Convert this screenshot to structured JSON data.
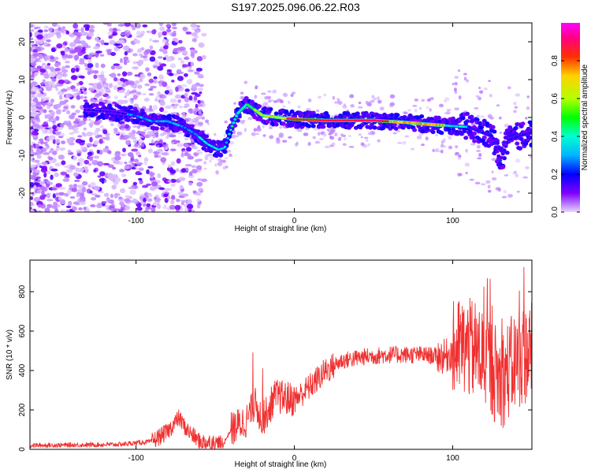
{
  "figure_title": "S197.2025.096.06.22.R03",
  "chart_data": [
    {
      "type": "heatmap",
      "xlabel": "Height of straight line (km)",
      "ylabel": "Frequency (Hz)",
      "xlim": [
        -167,
        150
      ],
      "ylim": [
        -25,
        25
      ],
      "xticks": [
        -100,
        0,
        100
      ],
      "yticks": [
        -20,
        -10,
        0,
        10,
        20
      ],
      "colorbar": {
        "label": "Normalized spectral amplitude",
        "ticks": [
          0.0,
          0.2,
          0.4,
          0.6,
          0.8
        ],
        "range": [
          0,
          1
        ],
        "colormap": [
          "#e6d6ff",
          "#8000ff",
          "#0000ff",
          "#00b4ff",
          "#00ffd0",
          "#00ff00",
          "#b4ff00",
          "#ffd200",
          "#ff3000",
          "#ff0080",
          "#ff00ff"
        ]
      },
      "ridge": [
        {
          "x": -130,
          "y": 2.0
        },
        {
          "x": -115,
          "y": 1.5
        },
        {
          "x": -100,
          "y": 0.5
        },
        {
          "x": -90,
          "y": -1.0
        },
        {
          "x": -80,
          "y": -1.0
        },
        {
          "x": -70,
          "y": -2.5
        },
        {
          "x": -62,
          "y": -4.5
        },
        {
          "x": -55,
          "y": -7.0
        },
        {
          "x": -48,
          "y": -8.5
        },
        {
          "x": -44,
          "y": -8.0
        },
        {
          "x": -40,
          "y": -3.0
        },
        {
          "x": -36,
          "y": 1.0
        },
        {
          "x": -30,
          "y": 3.5
        },
        {
          "x": -25,
          "y": 2.0
        },
        {
          "x": -20,
          "y": 0.5
        },
        {
          "x": -10,
          "y": 0.0
        },
        {
          "x": 0,
          "y": -0.5
        },
        {
          "x": 20,
          "y": -0.8
        },
        {
          "x": 50,
          "y": -0.8
        },
        {
          "x": 70,
          "y": -1.3
        },
        {
          "x": 90,
          "y": -2.0
        },
        {
          "x": 110,
          "y": -2.5
        },
        {
          "x": 125,
          "y": -5.0
        },
        {
          "x": 130,
          "y": -11.5
        },
        {
          "x": 135,
          "y": -6.0
        },
        {
          "x": 145,
          "y": -4.5
        },
        {
          "x": 150,
          "y": -4.0
        }
      ]
    },
    {
      "type": "line",
      "xlabel": "Height of straight line (km)",
      "ylabel": "SNR (10 * v/v)",
      "xlim": [
        -167,
        150
      ],
      "ylim": [
        0,
        960
      ],
      "xticks": [
        -100,
        0,
        100
      ],
      "yticks": [
        0,
        200,
        400,
        600,
        800
      ],
      "color": "#f03030",
      "series": [
        {
          "points": [
            {
              "x": -167,
              "y": 20
            },
            {
              "x": -140,
              "y": 22
            },
            {
              "x": -110,
              "y": 25
            },
            {
              "x": -90,
              "y": 40
            },
            {
              "x": -80,
              "y": 90
            },
            {
              "x": -73,
              "y": 160
            },
            {
              "x": -68,
              "y": 100
            },
            {
              "x": -60,
              "y": 40
            },
            {
              "x": -45,
              "y": 25
            },
            {
              "x": -40,
              "y": 100
            },
            {
              "x": -30,
              "y": 150
            },
            {
              "x": -25,
              "y": 230
            },
            {
              "x": -20,
              "y": 150
            },
            {
              "x": -12,
              "y": 270
            },
            {
              "x": 0,
              "y": 250
            },
            {
              "x": 10,
              "y": 320
            },
            {
              "x": 20,
              "y": 400
            },
            {
              "x": 30,
              "y": 450
            },
            {
              "x": 45,
              "y": 470
            },
            {
              "x": 60,
              "y": 480
            },
            {
              "x": 80,
              "y": 480
            },
            {
              "x": 95,
              "y": 470
            },
            {
              "x": 105,
              "y": 520
            },
            {
              "x": 115,
              "y": 500
            },
            {
              "x": 122,
              "y": 450
            },
            {
              "x": 130,
              "y": 350
            },
            {
              "x": 140,
              "y": 450
            },
            {
              "x": 150,
              "y": 500
            }
          ]
        }
      ]
    }
  ]
}
